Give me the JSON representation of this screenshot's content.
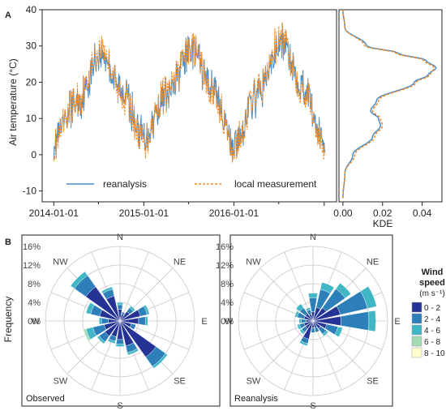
{
  "colors": {
    "reanalysis": "#4a8cc8",
    "local": "#f58a1f",
    "ws_0_2": "#253494",
    "ws_2_4": "#2c7fb8",
    "ws_4_6": "#41b6c4",
    "ws_6_8": "#a1dab4",
    "ws_8_10": "#ffffcc",
    "grid": "#c8c8c8",
    "axis": "#222222"
  },
  "panelA": {
    "label": "A",
    "ylabel": "Air temperature (°C)",
    "yticks": [
      "40",
      "30",
      "20",
      "10",
      "0",
      "-10"
    ],
    "xticks": [
      "2014-01-01",
      "2015-01-01",
      "2016-01-01"
    ],
    "legend": {
      "reanalysis": "reanalysis",
      "local": "local measurement"
    },
    "kde_xlabel": "KDE",
    "kde_xticks": [
      "0.00",
      "0.02",
      "0.04"
    ]
  },
  "panelB": {
    "label": "B",
    "ylabel": "Frequency",
    "radial_ticks": [
      "16%",
      "12%",
      "8%",
      "4%",
      "0%"
    ],
    "directions": [
      "N",
      "NE",
      "E",
      "SE",
      "S",
      "SW",
      "W",
      "NW"
    ],
    "roses": [
      "Observed",
      "Reanalysis"
    ],
    "legend_title_1": "Wind",
    "legend_title_2": "speed",
    "legend_unit": "(m s⁻¹)",
    "speed_classes": [
      "0 - 2",
      "2 - 4",
      "4 - 6",
      "6 - 8",
      "8 - 10"
    ]
  },
  "chart_data": [
    {
      "type": "line",
      "panel": "A",
      "ylabel": "Air temperature (°C)",
      "ylim": [
        -13,
        40
      ],
      "xlim": [
        "2013-11-15",
        "2017-02-20"
      ],
      "series": [
        {
          "name": "reanalysis",
          "x": [
            "2014-01-01",
            "2014-04-01",
            "2014-07-15",
            "2014-10-01",
            "2015-01-01",
            "2015-04-01",
            "2015-07-15",
            "2015-10-01",
            "2016-01-01",
            "2016-04-01",
            "2016-07-15",
            "2016-10-01",
            "2017-01-01"
          ],
          "y": [
            4,
            14,
            28,
            18,
            5,
            16,
            29,
            19,
            3,
            16,
            31,
            20,
            4
          ]
        },
        {
          "name": "local measurement",
          "x": [
            "2014-01-01",
            "2014-04-01",
            "2014-07-15",
            "2014-10-01",
            "2015-01-01",
            "2015-04-01",
            "2015-07-15",
            "2015-10-01",
            "2016-01-01",
            "2016-04-01",
            "2016-07-15",
            "2016-10-01",
            "2017-01-01"
          ],
          "y": [
            3,
            15,
            29,
            17,
            4,
            17,
            30,
            18,
            2,
            17,
            32,
            19,
            3
          ]
        }
      ]
    },
    {
      "type": "line",
      "panel": "A (KDE)",
      "xlabel": "KDE",
      "xlim": [
        -0.002,
        0.05
      ],
      "series": [
        {
          "name": "reanalysis",
          "temp": [
            -12,
            -5,
            0,
            5,
            8,
            10,
            12,
            15,
            20,
            22,
            24,
            26,
            28,
            30,
            35,
            40
          ],
          "density": [
            0.0,
            0.001,
            0.005,
            0.015,
            0.019,
            0.018,
            0.014,
            0.017,
            0.036,
            0.043,
            0.047,
            0.042,
            0.028,
            0.012,
            0.001,
            0.0
          ]
        },
        {
          "name": "local measurement",
          "temp": [
            -12,
            -5,
            0,
            5,
            8,
            10,
            12,
            15,
            20,
            22,
            24,
            26,
            28,
            30,
            35,
            40
          ],
          "density": [
            0.0,
            0.001,
            0.006,
            0.016,
            0.02,
            0.019,
            0.015,
            0.018,
            0.037,
            0.044,
            0.046,
            0.041,
            0.027,
            0.011,
            0.001,
            0.0
          ]
        }
      ]
    },
    {
      "type": "wind-rose",
      "name": "Observed",
      "rlim": [
        0,
        16
      ],
      "speed_classes": [
        "0 - 2",
        "2 - 4",
        "4 - 6",
        "6 - 8",
        "8 - 10"
      ],
      "directions_deg": [
        0,
        22.5,
        45,
        67.5,
        90,
        112.5,
        135,
        157.5,
        180,
        202.5,
        225,
        247.5,
        270,
        292.5,
        315,
        337.5
      ],
      "stacks": [
        [
          2.5,
          1.0,
          0.5,
          0,
          0
        ],
        [
          1.5,
          0.5,
          0,
          0,
          0
        ],
        [
          2.5,
          1.0,
          0.5,
          0,
          0
        ],
        [
          4.5,
          1.5,
          0.5,
          0,
          0
        ],
        [
          4.0,
          1.5,
          0.5,
          0,
          0
        ],
        [
          2.5,
          1.0,
          0,
          0,
          0
        ],
        [
          9.5,
          2.5,
          0.5,
          0,
          0
        ],
        [
          5.5,
          1.5,
          0.5,
          0,
          0
        ],
        [
          4.0,
          1.0,
          0.5,
          0,
          0
        ],
        [
          3.5,
          1.0,
          0.5,
          0,
          0
        ],
        [
          4.0,
          1.5,
          0.5,
          0,
          0
        ],
        [
          3.5,
          2.5,
          1.5,
          0.5,
          0
        ],
        [
          2.5,
          1.5,
          0.5,
          0,
          0
        ],
        [
          4.5,
          2.0,
          1.0,
          0,
          0
        ],
        [
          9.0,
          3.0,
          1.0,
          0,
          0
        ],
        [
          5.5,
          1.5,
          0.5,
          0,
          0
        ]
      ]
    },
    {
      "type": "wind-rose",
      "name": "Reanalysis",
      "rlim": [
        0,
        16
      ],
      "speed_classes": [
        "0 - 2",
        "2 - 4",
        "4 - 6",
        "6 - 8",
        "8 - 10"
      ],
      "directions_deg": [
        0,
        22.5,
        45,
        67.5,
        90,
        112.5,
        135,
        157.5,
        180,
        202.5,
        225,
        247.5,
        270,
        292.5,
        315,
        337.5
      ],
      "stacks": [
        [
          2.0,
          3.0,
          1.0,
          0,
          0
        ],
        [
          3.0,
          4.0,
          1.5,
          0,
          0
        ],
        [
          3.5,
          5.0,
          1.5,
          0,
          0
        ],
        [
          6.0,
          6.0,
          2.0,
          0,
          0
        ],
        [
          6.0,
          6.0,
          1.5,
          0,
          0
        ],
        [
          3.0,
          2.5,
          1.0,
          0,
          0
        ],
        [
          2.0,
          1.5,
          0.5,
          0,
          0
        ],
        [
          1.5,
          1.0,
          0,
          0,
          0
        ],
        [
          1.5,
          1.0,
          0,
          0,
          0
        ],
        [
          4.0,
          1.0,
          0.5,
          0,
          0
        ],
        [
          2.0,
          1.0,
          0.5,
          0,
          0
        ],
        [
          2.0,
          1.0,
          0.5,
          0,
          0
        ],
        [
          1.5,
          1.0,
          0.5,
          0,
          0
        ],
        [
          2.0,
          1.5,
          0.5,
          0,
          0
        ],
        [
          2.0,
          1.5,
          1.0,
          0,
          0
        ],
        [
          1.5,
          1.0,
          0.5,
          0,
          0
        ]
      ]
    }
  ]
}
